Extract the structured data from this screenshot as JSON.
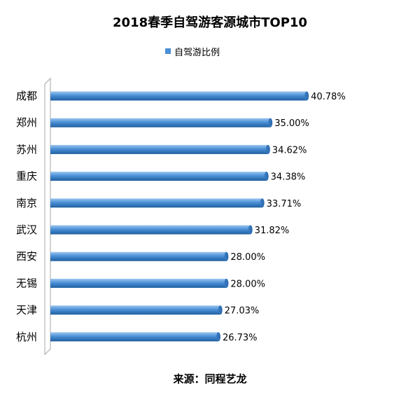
{
  "chart_data": {
    "type": "bar",
    "orientation": "horizontal",
    "title": "2018春季自驾游客源城市TOP10",
    "legend_position": "top",
    "categories": [
      "成都",
      "郑州",
      "苏州",
      "重庆",
      "南京",
      "武汉",
      "西安",
      "无锡",
      "天津",
      "杭州"
    ],
    "series": [
      {
        "name": "自驾游比例",
        "values": [
          40.78,
          35.0,
          34.62,
          34.38,
          33.71,
          31.82,
          28.0,
          28.0,
          27.03,
          26.73
        ],
        "labels": [
          "40.78%",
          "35.00%",
          "34.62%",
          "34.38%",
          "33.71%",
          "31.82%",
          "28.00%",
          "28.00%",
          "27.03%",
          "26.73%"
        ],
        "color": "#4a8fd6"
      }
    ],
    "xlim": [
      0,
      45
    ],
    "grid": false,
    "bar_style": "3d-cylinder"
  },
  "source": "来源：同程艺龙",
  "colors": {
    "bar_top": "#9cc6f0",
    "bar_mid": "#4a8fd6",
    "bar_bottom": "#1f5f9f",
    "axis": "#a6a6a6"
  }
}
